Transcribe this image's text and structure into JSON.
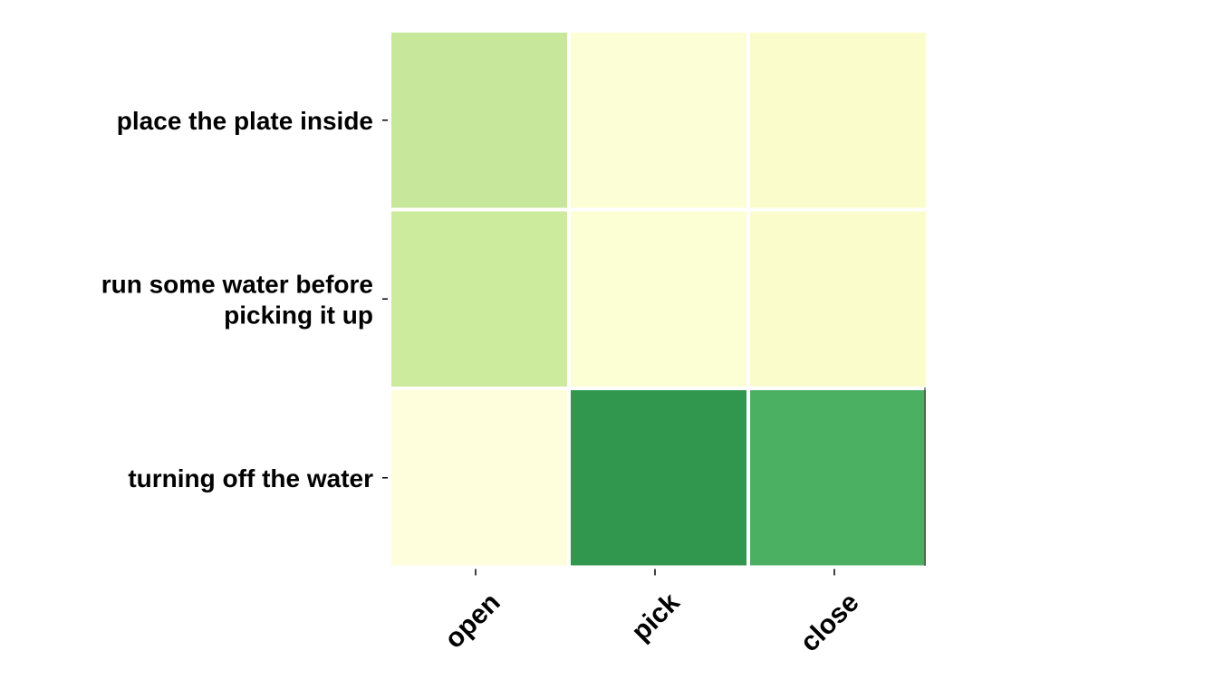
{
  "chart_data": {
    "type": "heatmap",
    "rows": [
      [
        "place the plate inside"
      ],
      [
        "run some water before",
        "picking it up"
      ],
      [
        "turning off the water"
      ]
    ],
    "columns": [
      "open",
      "pick",
      "close"
    ],
    "values": [
      [
        0.4,
        0.06,
        0.1
      ],
      [
        0.38,
        0.07,
        0.1
      ],
      [
        0.03,
        0.92,
        0.8
      ]
    ],
    "colorscale": [
      "#ffffe5",
      "#f7fcb9",
      "#d9f0a3",
      "#addd8e",
      "#78c679",
      "#41ab5d",
      "#238443"
    ],
    "grid": false
  }
}
